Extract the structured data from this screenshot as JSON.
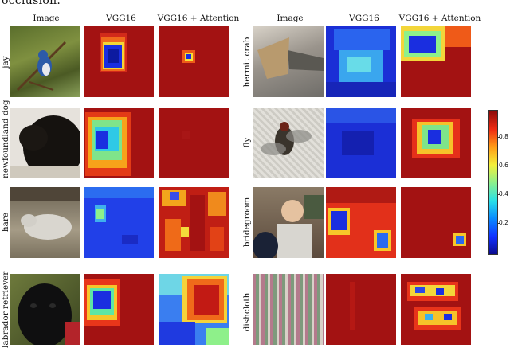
{
  "top_text": "occlusion.",
  "headers": {
    "image": "Image",
    "vgg": "VGG16",
    "vgg_att": "VGG16 + Attention"
  },
  "rows": {
    "left": [
      {
        "label": "jay"
      },
      {
        "label": "newfoundland dog"
      },
      {
        "label": "hare"
      },
      {
        "label": "labrador retriever"
      }
    ],
    "right": [
      {
        "label": "hermit crab"
      },
      {
        "label": "fly"
      },
      {
        "label": "bridegroom"
      },
      {
        "label": "dishcloth"
      }
    ]
  },
  "colorbar": {
    "ticks": [
      "0.8",
      "0.6",
      "0.4",
      "0.2"
    ]
  },
  "colors": {
    "background_heat": "#a31212",
    "hot": "#e5261a",
    "cold": "#1f2fd8"
  }
}
